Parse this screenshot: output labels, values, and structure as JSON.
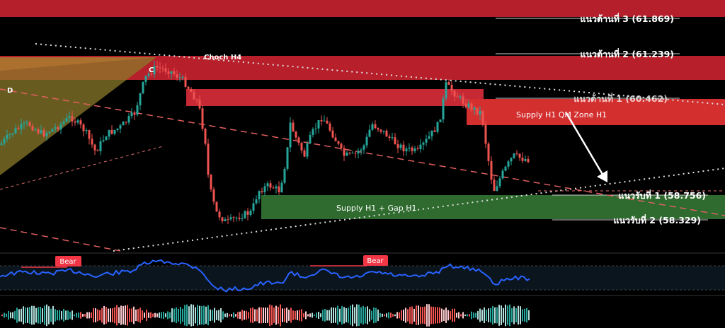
{
  "chart_data": {
    "type": "candlestick",
    "colors": {
      "background": "#000000",
      "bull": "#26a69a",
      "bear": "#ef5350",
      "resistance_zone": "#c62834",
      "supply_zone": "#2e7d32",
      "fib_triangle": "#c5a236",
      "rsi_line": "#2962ff",
      "bear_badge": "#f23645"
    },
    "levels": [
      {
        "label": "แนวต้านที่ 3 (61.869)",
        "value": 61.869
      },
      {
        "label": "แนวต้านที่ 2 (61.239)",
        "value": 61.239
      },
      {
        "label": "แนวต้านที่ 1 (60.462)",
        "value": 60.462
      },
      {
        "label": "แนวรับที่ 1 (58.756)",
        "value": 58.756
      },
      {
        "label": "แนวรับที่ 2 (58.329)",
        "value": 58.329
      }
    ],
    "annotations": {
      "choch": "Choch H4",
      "point_c": "C",
      "point_d": "D",
      "supply_qm": "Supply H1  QM Zone H1",
      "supply_gap": "Supply H1 + Gap H1"
    },
    "indicator": {
      "divergence_labels": [
        "Bear",
        "Bear"
      ]
    }
  }
}
